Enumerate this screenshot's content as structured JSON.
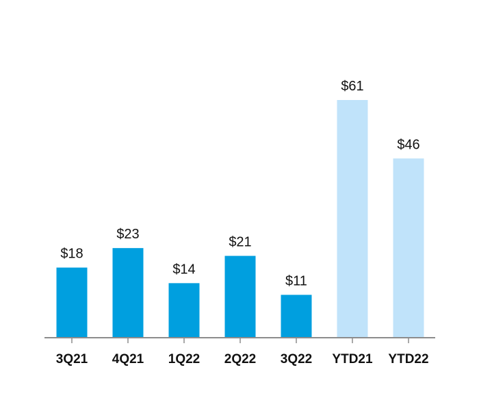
{
  "chart_data": {
    "type": "bar",
    "title": "",
    "xlabel": "",
    "ylabel": "",
    "categories": [
      "3Q21",
      "4Q21",
      "1Q22",
      "2Q22",
      "3Q22",
      "YTD21",
      "YTD22"
    ],
    "values": [
      18,
      23,
      14,
      21,
      11,
      61,
      46
    ],
    "value_labels": [
      "$18",
      "$23",
      "$14",
      "$21",
      "$11",
      "$61",
      "$46"
    ],
    "bar_colors": [
      "#009fdf",
      "#009fdf",
      "#009fdf",
      "#009fdf",
      "#009fdf",
      "#c0e3fa",
      "#c0e3fa"
    ],
    "axis_color": "#8c8c8c",
    "ylim": [
      0,
      64
    ],
    "grid": false,
    "legend": "none"
  }
}
